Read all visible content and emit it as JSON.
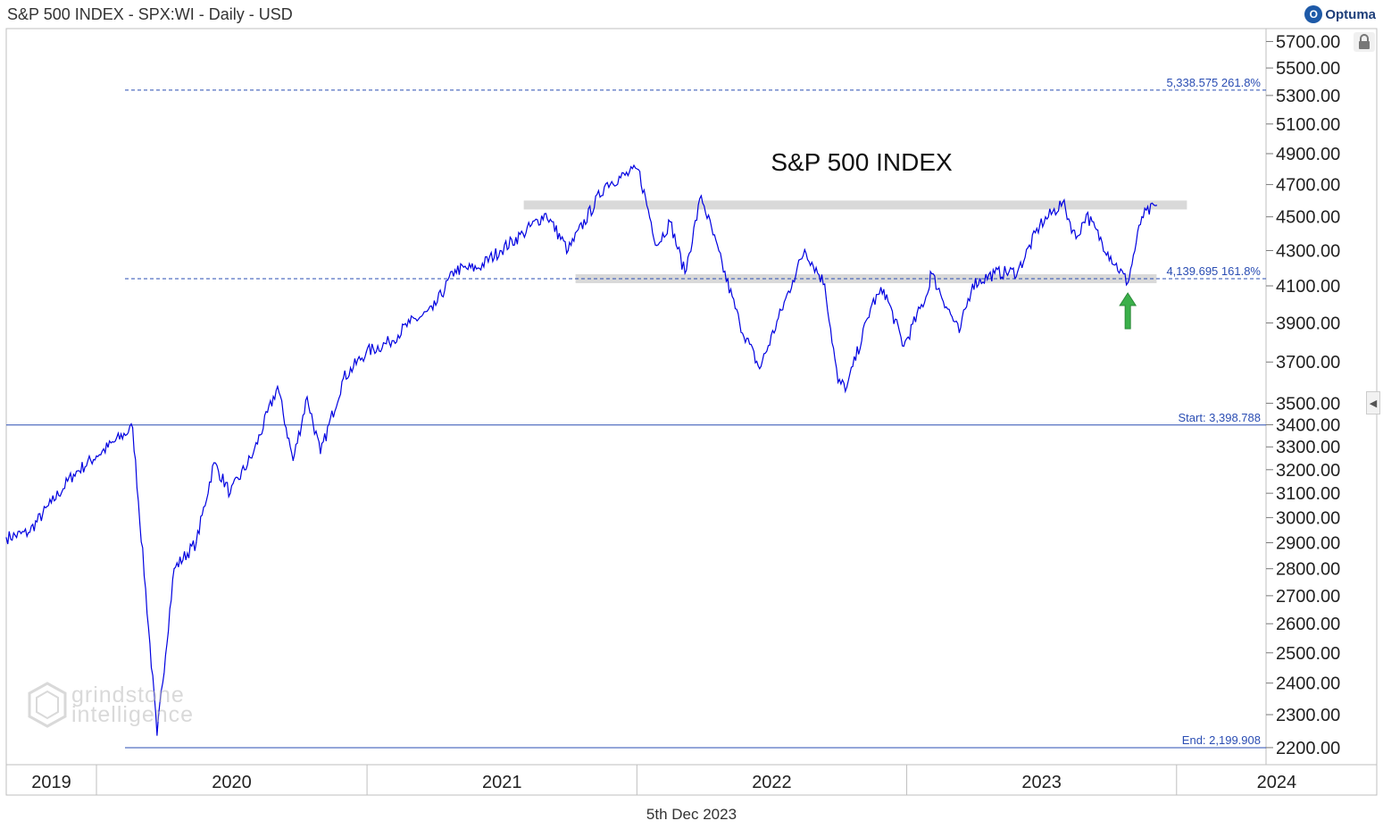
{
  "header": {
    "title": "S&P 500 INDEX - SPX:WI - Daily - USD",
    "brand": "Optuma"
  },
  "footer": {
    "date": "5th Dec 2023"
  },
  "watermark": {
    "line1": "grindstone",
    "line2": "intelligence"
  },
  "colors": {
    "price": "#0000e0",
    "level_line": "#2a4db3",
    "zone": "#d9d9d9",
    "arrow": "#3bb04a"
  },
  "chart_data": {
    "type": "line",
    "title": "S&P 500 INDEX",
    "y_scale": "log",
    "ylim": [
      2150,
      5800
    ],
    "y_ticks": [
      "5700.00",
      "5500.00",
      "5300.00",
      "5100.00",
      "4900.00",
      "4700.00",
      "4500.00",
      "4300.00",
      "4100.00",
      "3900.00",
      "3700.00",
      "3500.00",
      "3400.00",
      "3300.00",
      "3200.00",
      "3100.00",
      "3000.00",
      "2900.00",
      "2800.00",
      "2700.00",
      "2600.00",
      "2500.00",
      "2400.00",
      "2300.00",
      "2200.00"
    ],
    "x_ticks": [
      "2019",
      "2020",
      "2021",
      "2022",
      "2023",
      "2024"
    ],
    "xlim": [
      "2019-09-01",
      "2024-05-01"
    ],
    "series": [
      {
        "x": [
          "2019-09-01",
          "2019-10-01",
          "2019-11-01",
          "2019-12-01",
          "2020-01-01",
          "2020-02-19",
          "2020-03-23",
          "2020-04-15",
          "2020-05-15",
          "2020-06-08",
          "2020-06-30",
          "2020-07-31",
          "2020-09-02",
          "2020-09-23",
          "2020-10-12",
          "2020-10-30",
          "2020-11-30",
          "2020-12-31",
          "2021-01-31",
          "2021-02-28",
          "2021-03-31",
          "2021-04-30",
          "2021-05-31",
          "2021-06-30",
          "2021-07-31",
          "2021-08-31",
          "2021-09-30",
          "2021-11-20",
          "2022-01-03",
          "2022-01-28",
          "2022-02-15",
          "2022-03-07",
          "2022-03-29",
          "2022-05-20",
          "2022-06-16",
          "2022-07-31",
          "2022-08-16",
          "2022-09-12",
          "2022-09-30",
          "2022-10-12",
          "2022-11-15",
          "2022-12-01",
          "2022-12-28",
          "2023-01-31",
          "2023-02-02",
          "2023-03-13",
          "2023-03-31",
          "2023-04-30",
          "2023-05-31",
          "2023-06-30",
          "2023-07-31",
          "2023-08-18",
          "2023-09-01",
          "2023-09-30",
          "2023-10-27",
          "2023-11-15",
          "2023-12-05"
        ],
        "y": [
          2920,
          2940,
          3060,
          3180,
          3260,
          3386,
          2237,
          2800,
          2900,
          3230,
          3100,
          3270,
          3580,
          3240,
          3530,
          3270,
          3620,
          3750,
          3800,
          3900,
          3970,
          4190,
          4200,
          4300,
          4400,
          4520,
          4300,
          4704,
          4796,
          4330,
          4470,
          4170,
          4630,
          3900,
          3667,
          4130,
          4305,
          4110,
          3600,
          3577,
          4000,
          4080,
          3780,
          4080,
          4180,
          3850,
          4110,
          4170,
          4180,
          4450,
          4588,
          4370,
          4515,
          4290,
          4117,
          4500,
          4570
        ]
      }
    ],
    "levels": [
      {
        "value": 5338.575,
        "label": "5,338.575",
        "pct": "261.8%"
      },
      {
        "value": 4139.695,
        "label": "4,139.695",
        "pct": "161.8%"
      },
      {
        "value": 3398.788,
        "prefix": "Start:",
        "label": "3,398.788"
      },
      {
        "value": 2199.908,
        "prefix": "End:",
        "label": "2,199.908"
      }
    ],
    "zones": [
      {
        "from": "2021-08-01",
        "to": "2024-01-15",
        "low": 4545,
        "high": 4600
      },
      {
        "from": "2021-10-10",
        "to": "2023-12-05",
        "low": 4115,
        "high": 4165
      }
    ],
    "annotations": [
      {
        "type": "up-arrow",
        "x": "2023-10-27"
      }
    ]
  }
}
